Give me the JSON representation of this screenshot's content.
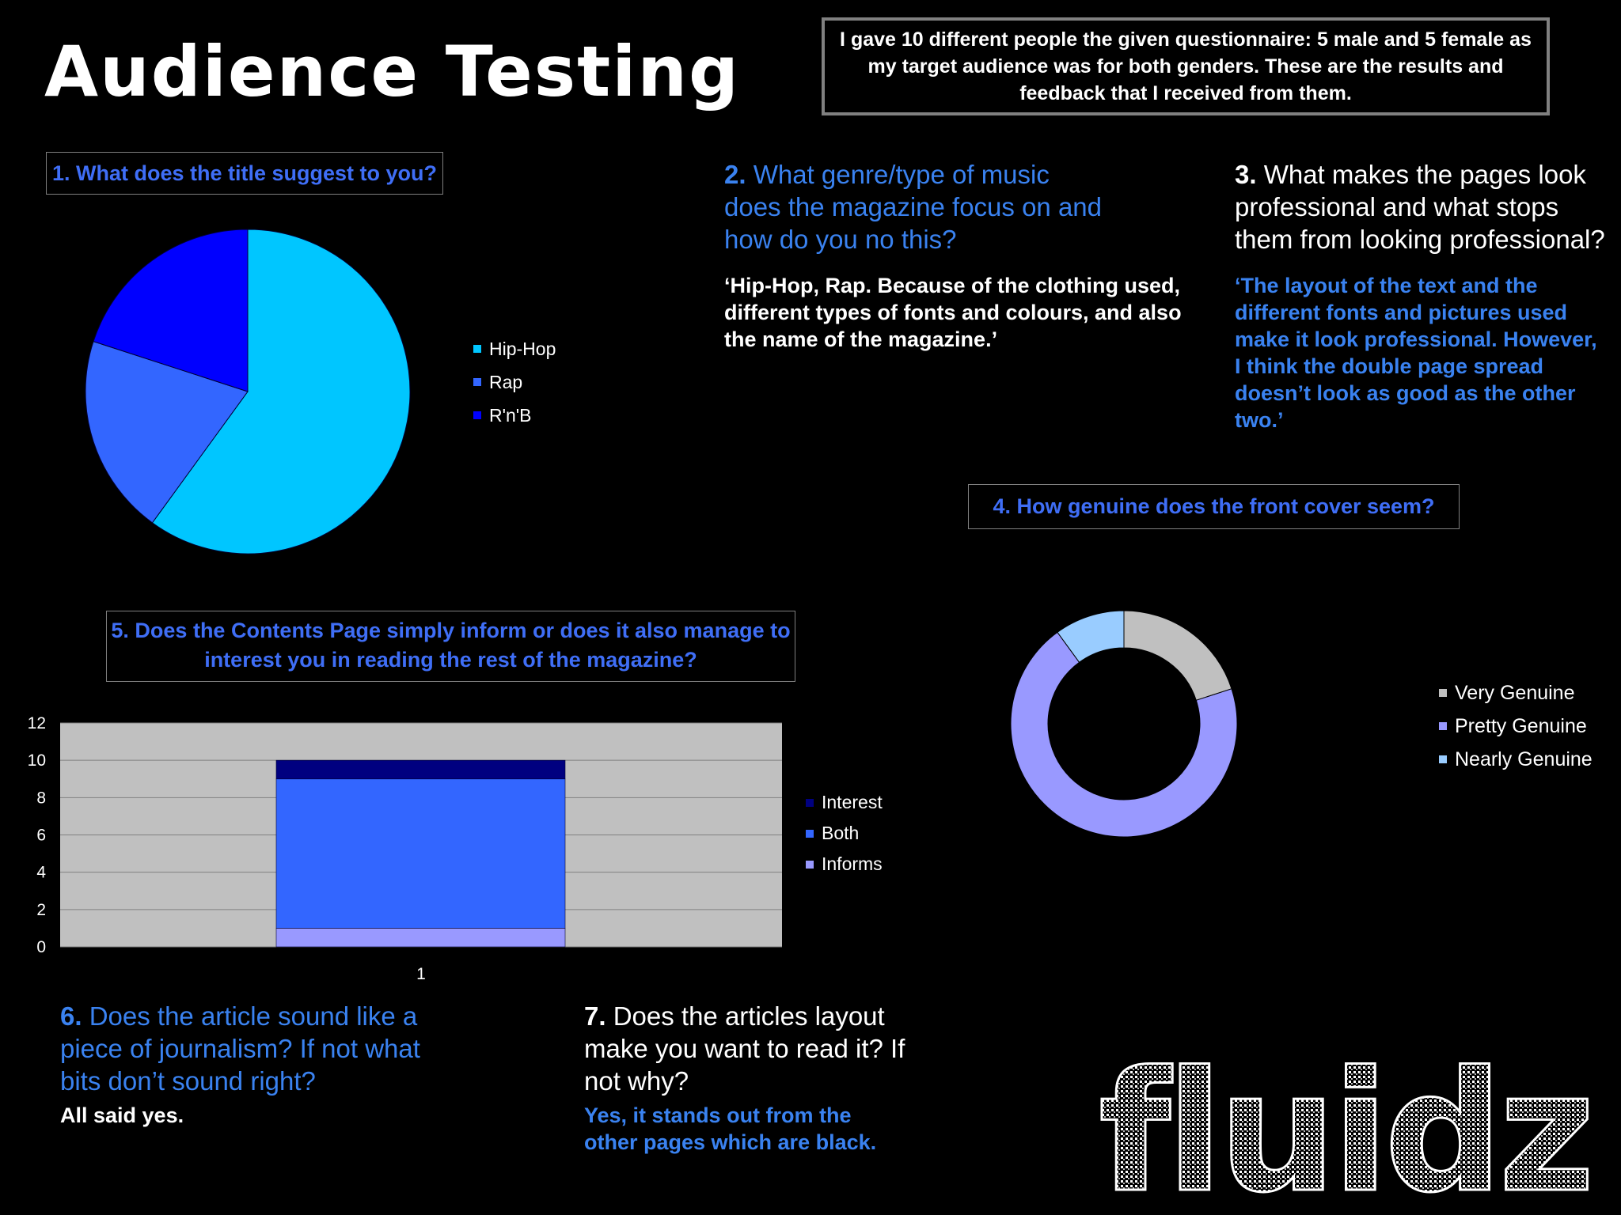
{
  "page": {
    "title": "Audience Testing",
    "intro": "I gave 10 different people the given questionnaire: 5 male and 5 female as my target audience was for both genders. These are the results and feedback that I received from them."
  },
  "questions": {
    "q1": {
      "text": "1. What does the title suggest to you?"
    },
    "q2": {
      "num": "2.",
      "text": "What genre/type of music does the magazine focus on and how do you no this?",
      "answer": "‘Hip-Hop, Rap. Because of the clothing used, different types of fonts and colours, and also the name of the magazine.’"
    },
    "q3": {
      "num": "3.",
      "text": "What makes the pages look professional and what stops them from looking professional?",
      "answer": "‘The layout of the text and the different fonts and pictures used make it look professional. However, I think the double page spread doesn’t look as good as the other two.’"
    },
    "q4": {
      "text": "4. How genuine does the front cover seem?"
    },
    "q5": {
      "text": "5. Does the Contents Page simply inform or does it also manage to interest you in reading the rest of the magazine?"
    },
    "q6": {
      "num": "6.",
      "text": "Does the article sound like a piece of journalism? If not what bits don’t sound right?",
      "answer": "All said yes."
    },
    "q7": {
      "num": "7.",
      "text": "Does the articles layout make you want to read it? If not why?",
      "answer": "Yes, it stands out from the other pages which are black."
    }
  },
  "logo": {
    "text": "fluidz"
  },
  "colors": {
    "hiphop": "#00c6ff",
    "rap": "#3366ff",
    "rnb": "#0000ff",
    "very": "#c0c0c0",
    "pretty": "#9999ff",
    "nearly": "#99ccff",
    "interest": "#000080",
    "both": "#3366ff",
    "informs": "#9999ff",
    "plot_bg": "#c0c0c0"
  },
  "chart_data": [
    {
      "type": "pie",
      "categories": [
        "Hip-Hop",
        "Rap",
        "R'n'B"
      ],
      "values": [
        6,
        2,
        2
      ],
      "legend": "right"
    },
    {
      "type": "pie",
      "variant": "doughnut",
      "categories": [
        "Very Genuine",
        "Pretty Genuine",
        "Nearly Genuine"
      ],
      "values": [
        2,
        7,
        1
      ],
      "legend": "right"
    },
    {
      "type": "bar",
      "stacked": true,
      "categories": [
        "1"
      ],
      "series": [
        {
          "name": "Informs",
          "values": [
            1
          ]
        },
        {
          "name": "Both",
          "values": [
            8
          ]
        },
        {
          "name": "Interest",
          "values": [
            1
          ]
        }
      ],
      "ylim": [
        0,
        12
      ],
      "yticks": [
        "0",
        "2",
        "4",
        "6",
        "8",
        "10",
        "12"
      ],
      "grid": true,
      "legend": "right"
    }
  ]
}
